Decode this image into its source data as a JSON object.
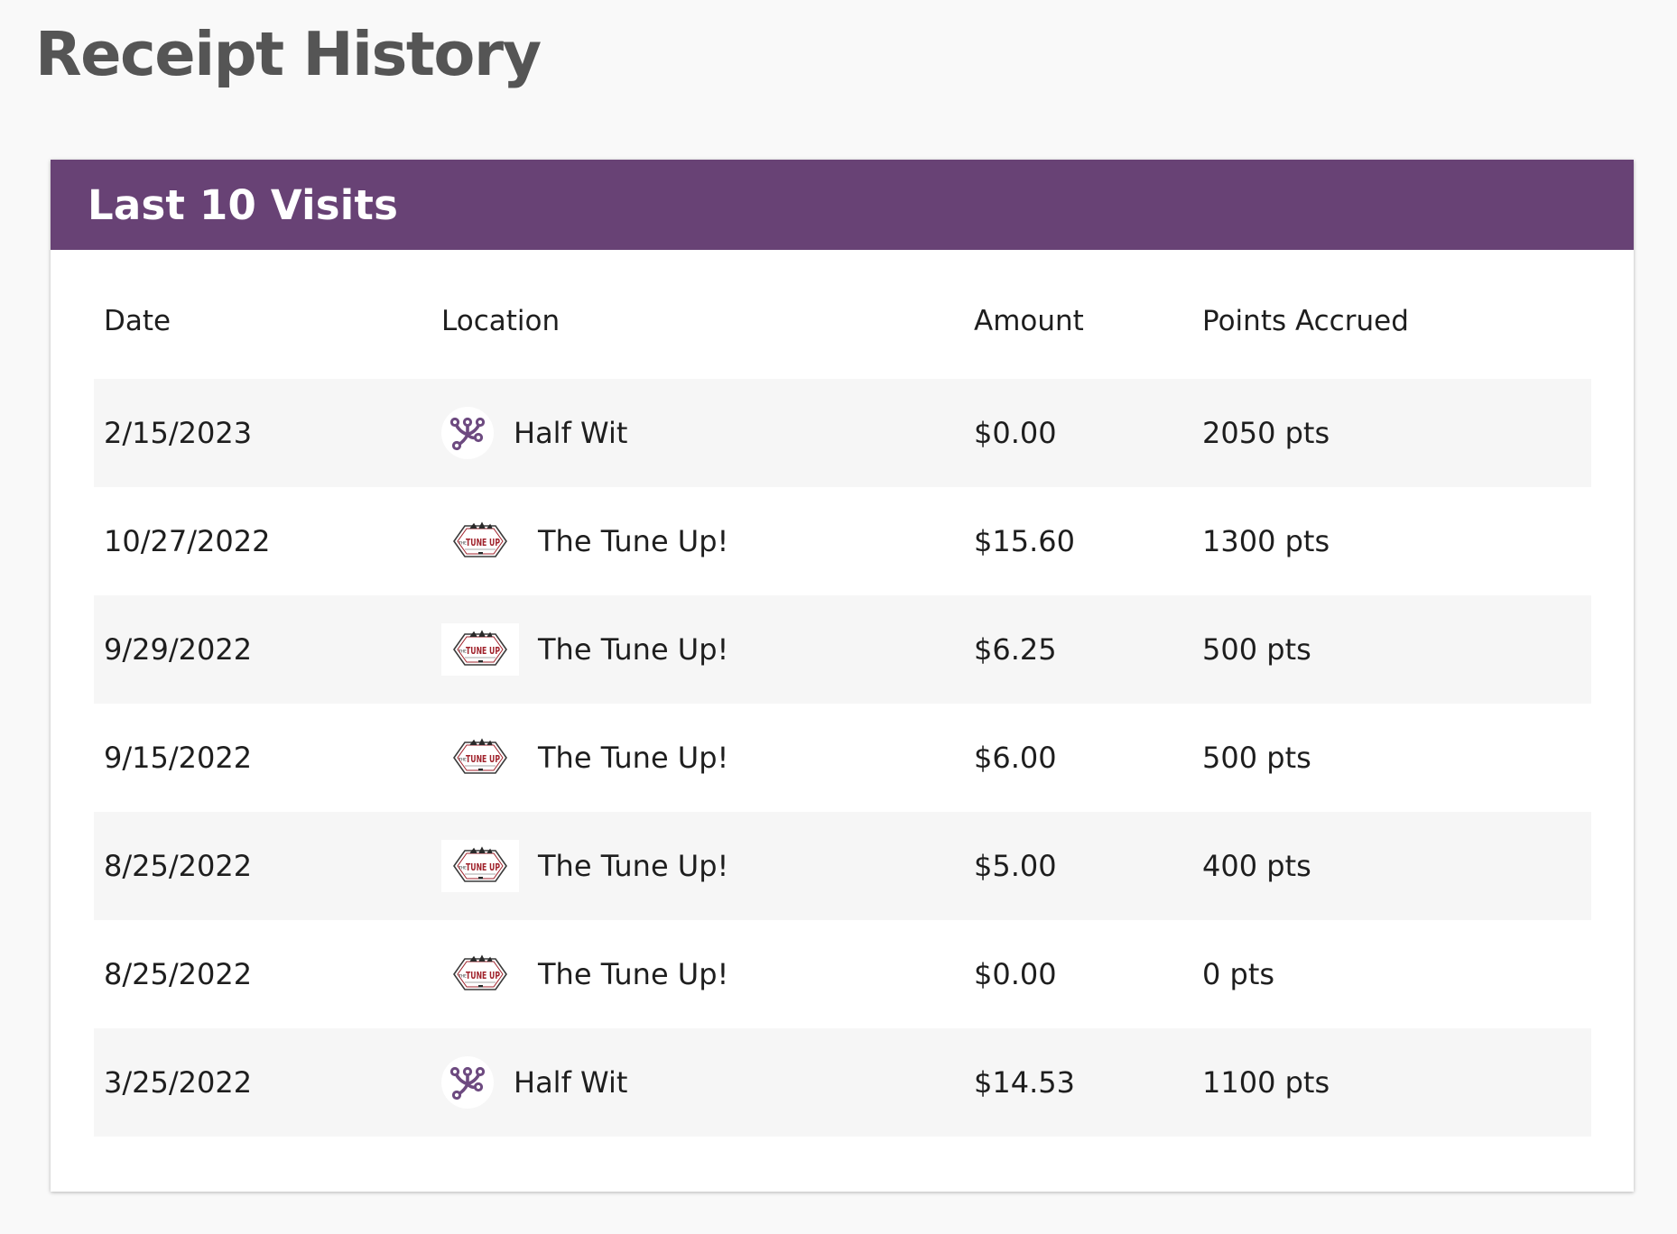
{
  "page": {
    "title": "Receipt History"
  },
  "card": {
    "title": "Last 10 Visits"
  },
  "table": {
    "headers": {
      "date": "Date",
      "location": "Location",
      "amount": "Amount",
      "points": "Points Accrued"
    },
    "rows": [
      {
        "date": "2/15/2023",
        "location": "Half Wit",
        "logo": "half-wit-logo",
        "amount": "$0.00",
        "points": "2050 pts"
      },
      {
        "date": "10/27/2022",
        "location": "The Tune Up!",
        "logo": "tune-up-logo",
        "amount": "$15.60",
        "points": "1300 pts"
      },
      {
        "date": "9/29/2022",
        "location": "The Tune Up!",
        "logo": "tune-up-logo",
        "amount": "$6.25",
        "points": "500 pts"
      },
      {
        "date": "9/15/2022",
        "location": "The Tune Up!",
        "logo": "tune-up-logo",
        "amount": "$6.00",
        "points": "500 pts"
      },
      {
        "date": "8/25/2022",
        "location": "The Tune Up!",
        "logo": "tune-up-logo",
        "amount": "$5.00",
        "points": "400 pts"
      },
      {
        "date": "8/25/2022",
        "location": "The Tune Up!",
        "logo": "tune-up-logo",
        "amount": "$0.00",
        "points": "0 pts"
      },
      {
        "date": "3/25/2022",
        "location": "Half Wit",
        "logo": "half-wit-logo",
        "amount": "$14.53",
        "points": "1100 pts"
      }
    ]
  },
  "logos": {
    "tune_up_text": "TUNE UP",
    "tune_up_prefix": "THE"
  },
  "colors": {
    "header_background": "#684275",
    "title_text": "#555555",
    "stripe": "#f6f6f6",
    "half_wit_brand": "#6d4a80",
    "tune_up_brand": "#a0222b"
  }
}
